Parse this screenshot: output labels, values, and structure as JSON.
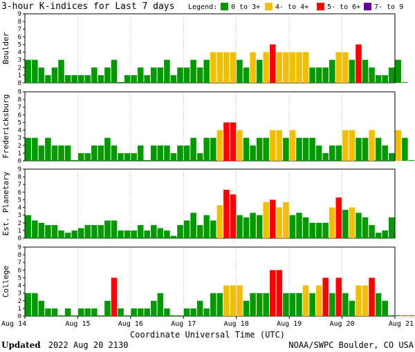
{
  "chart_data": {
    "type": "bar",
    "title": "3-hour K-indices for Last 7 days",
    "legend": {
      "label": "Legend:",
      "items": [
        {
          "label": "0 to 3+",
          "color": "#009900"
        },
        {
          "label": "4- to 4+",
          "color": "#f2bf00"
        },
        {
          "label": "5- to 6+",
          "color": "#ff0000"
        },
        {
          "label": "7- to 9",
          "color": "#660099"
        }
      ]
    },
    "xlabel": "Coordinate Universal Time (UTC)",
    "x_tick_labels": [
      "Aug 14",
      "Aug 15",
      "Aug 16",
      "Aug 17",
      "Aug 18",
      "Aug 19",
      "Aug 20",
      "Aug 21"
    ],
    "ylim": [
      0,
      9
    ],
    "y_ticks": [
      0,
      1,
      2,
      3,
      4,
      5,
      6,
      7,
      8,
      9
    ],
    "intervals_per_day": 8,
    "thresholds": {
      "yellow_min": 4,
      "red_min": 5,
      "purple_min": 7
    },
    "panels": [
      {
        "name": "Boulder",
        "values": [
          3,
          3,
          2,
          1,
          2,
          3,
          1,
          1,
          1,
          1,
          2,
          1,
          2,
          3,
          0.1,
          1,
          1,
          2,
          1,
          2,
          2,
          3,
          1,
          2,
          2,
          3,
          2,
          3,
          4,
          4,
          4,
          4,
          3,
          2,
          4,
          3,
          4,
          5,
          4,
          4,
          4,
          4,
          4,
          2,
          2,
          2,
          3,
          4,
          4,
          3,
          5,
          3,
          2,
          1,
          1,
          2,
          3,
          0.1,
          0,
          0,
          0,
          0,
          0,
          0
        ]
      },
      {
        "name": "Fredericksburg",
        "values": [
          3,
          3,
          2,
          3,
          2,
          2,
          2,
          0.1,
          1,
          1,
          2,
          2,
          3,
          2,
          1,
          1,
          1,
          2,
          0.1,
          2,
          2,
          2,
          1,
          2,
          2,
          3,
          1,
          3,
          3,
          4,
          5,
          5,
          4,
          3,
          2,
          3,
          3,
          4,
          4,
          3,
          4,
          3,
          3,
          3,
          2,
          1,
          2,
          2,
          4,
          4,
          3,
          3,
          4,
          3,
          2,
          1,
          4,
          3,
          0.1,
          0,
          0,
          0,
          0,
          0
        ]
      },
      {
        "name": "Est. Planetary",
        "values": [
          3,
          2.3,
          2,
          1.7,
          1.7,
          1,
          0.7,
          1,
          1.3,
          1.7,
          1.7,
          1.7,
          2.3,
          2.3,
          1,
          1,
          1,
          1.7,
          1,
          1.7,
          1.3,
          1,
          0.3,
          1.7,
          2.3,
          3.3,
          1.7,
          3,
          2.3,
          4.3,
          6.3,
          5.7,
          3,
          2.7,
          3.3,
          3,
          4.7,
          5,
          4,
          4.7,
          3,
          3.3,
          2.7,
          2,
          2,
          2,
          4,
          5.3,
          3.7,
          4,
          3.3,
          2.7,
          1.7,
          0.7,
          1,
          2.7,
          0,
          0,
          0,
          0,
          0,
          0,
          0,
          0
        ]
      },
      {
        "name": "College",
        "values": [
          3,
          3,
          2,
          1,
          1,
          0.1,
          1,
          0.1,
          1,
          1,
          1,
          0.1,
          2,
          5,
          1,
          0.1,
          1,
          1,
          1,
          2,
          3,
          1,
          0.1,
          0.1,
          1,
          1,
          2,
          1,
          3,
          3,
          4,
          4,
          4,
          2,
          3,
          3,
          3,
          6,
          6,
          3,
          3,
          3,
          4,
          3,
          4,
          5,
          3,
          5,
          3,
          2,
          4,
          4,
          5,
          3,
          2,
          0.1,
          0.1,
          0.1,
          0.1,
          0,
          0,
          0,
          0,
          0
        ]
      }
    ]
  },
  "footer": {
    "updated_label": "Updated",
    "updated_value": "2022 Aug 20 2130",
    "source": "NOAA/SWPC Boulder, CO USA"
  }
}
